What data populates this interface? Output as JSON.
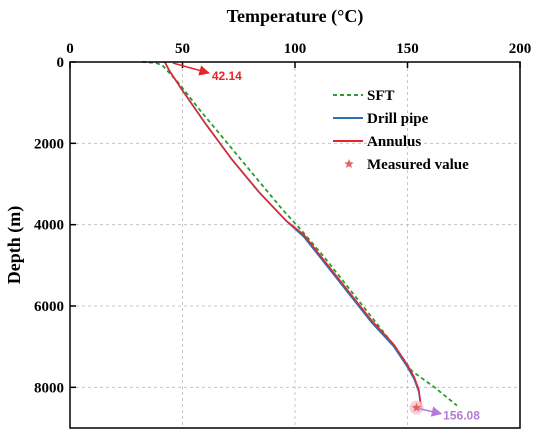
{
  "chart_data": {
    "type": "line",
    "xlabel": "Temperature (°C)",
    "ylabel": "Depth (m)",
    "xlim": [
      0,
      200
    ],
    "ylim": [
      0,
      9000
    ],
    "y_inverted": true,
    "x_axis_position": "top",
    "xticks": [
      0,
      50,
      100,
      150,
      200
    ],
    "yticks": [
      0,
      2000,
      4000,
      6000,
      8000
    ],
    "grid": true,
    "legend_position": "top-right",
    "colors": {
      "sft": "#2e9b2e",
      "drill_pipe": "#2e6fb3",
      "annulus": "#e8262a",
      "measured": "#e06666",
      "annot_top": "#e8262a",
      "annot_bottom": "#b47cd8",
      "grid": "#bbbbbb"
    },
    "series": [
      {
        "name": "SFT",
        "style": "dashed",
        "x": [
          32,
          38,
          41,
          48,
          58,
          70,
          82,
          94,
          103,
          113,
          123,
          133,
          143,
          152,
          162,
          172
        ],
        "y": [
          0,
          20,
          80,
          500,
          1200,
          2000,
          2800,
          3600,
          4150,
          4800,
          5500,
          6200,
          6900,
          7600,
          8000,
          8450
        ]
      },
      {
        "name": "Drill pipe",
        "style": "solid",
        "x": [
          42.1,
          44,
          50,
          60,
          72,
          84,
          96,
          104,
          114,
          124,
          134,
          144,
          150,
          153,
          155,
          156.1
        ],
        "y": [
          0,
          200,
          700,
          1500,
          2400,
          3200,
          3900,
          4300,
          5000,
          5700,
          6400,
          7000,
          7500,
          7800,
          8100,
          8500
        ]
      },
      {
        "name": "Annulus",
        "style": "solid",
        "x": [
          42.14,
          44,
          50,
          60,
          72,
          84,
          96,
          104,
          114,
          124,
          134,
          144,
          150,
          153,
          155,
          156.08
        ],
        "y": [
          0,
          200,
          700,
          1500,
          2400,
          3200,
          3900,
          4250,
          4950,
          5650,
          6350,
          6950,
          7450,
          7750,
          8050,
          8500
        ]
      },
      {
        "name": "Measured value",
        "style": "marker",
        "x": [
          154
        ],
        "y": [
          8500
        ]
      }
    ],
    "annotations": [
      {
        "text": "42.14",
        "x": 42.14,
        "y": 0
      },
      {
        "text": "156.08",
        "x": 156.08,
        "y": 8500
      }
    ]
  }
}
